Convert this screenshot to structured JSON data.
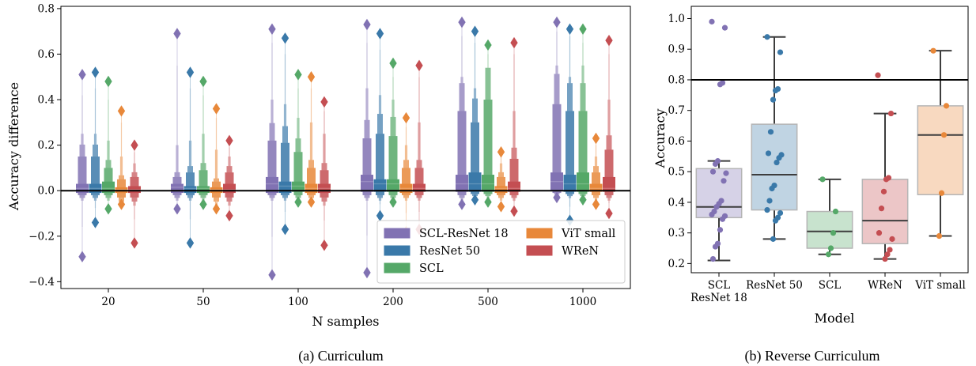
{
  "chart_data": [
    {
      "type": "boxen",
      "caption": "(a) Curriculum",
      "xlabel": "N samples",
      "ylabel": "Accuracy difference",
      "ylim": [
        -0.43,
        0.81
      ],
      "yticks": [
        -0.4,
        -0.2,
        0.0,
        0.2,
        0.4,
        0.6,
        0.8
      ],
      "ytick_labels": [
        "−0.4",
        "−0.2",
        "0.0",
        "0.2",
        "0.4",
        "0.6",
        "0.8"
      ],
      "categories": [
        "20",
        "50",
        "100",
        "200",
        "500",
        "1000"
      ],
      "reference_line_y": 0.0,
      "legend_position": "lower-right",
      "series": [
        {
          "name": "SCL-ResNet 18",
          "color": "#8172b3",
          "median": [
            0.01,
            0.015,
            0.03,
            0.04,
            0.03,
            0.04
          ],
          "q1": [
            -0.01,
            -0.01,
            -0.01,
            -0.005,
            -0.005,
            0.0
          ],
          "q3": [
            0.03,
            0.03,
            0.06,
            0.07,
            0.07,
            0.08
          ],
          "outer_high": [
            0.15,
            0.06,
            0.22,
            0.23,
            0.35,
            0.38
          ],
          "outer_low": [
            -0.02,
            -0.02,
            -0.02,
            -0.02,
            -0.02,
            -0.01
          ],
          "p95": [
            0.25,
            0.2,
            0.4,
            0.45,
            0.5,
            0.55
          ],
          "whisker": [
            0.42,
            0.55,
            0.65,
            0.65,
            0.68,
            0.7
          ],
          "max": [
            0.51,
            0.69,
            0.71,
            0.73,
            0.74,
            0.74
          ],
          "min": [
            -0.29,
            -0.08,
            -0.37,
            -0.36,
            -0.06,
            -0.03
          ]
        },
        {
          "name": "ResNet 50",
          "color": "#3a79a9",
          "median": [
            0.01,
            0.01,
            0.02,
            0.03,
            0.03,
            0.03
          ],
          "q1": [
            -0.01,
            -0.01,
            -0.01,
            -0.005,
            -0.005,
            -0.005
          ],
          "q3": [
            0.03,
            0.02,
            0.04,
            0.05,
            0.08,
            0.07
          ],
          "outer_high": [
            0.15,
            0.08,
            0.21,
            0.25,
            0.3,
            0.35
          ],
          "outer_low": [
            -0.02,
            -0.02,
            -0.02,
            -0.02,
            -0.015,
            -0.015
          ],
          "p95": [
            0.25,
            0.22,
            0.38,
            0.42,
            0.45,
            0.5
          ],
          "whisker": [
            0.45,
            0.45,
            0.6,
            0.62,
            0.65,
            0.68
          ],
          "max": [
            0.52,
            0.52,
            0.67,
            0.69,
            0.7,
            0.71
          ],
          "min": [
            -0.14,
            -0.23,
            -0.17,
            -0.11,
            -0.04,
            -0.13
          ]
        },
        {
          "name": "SCL",
          "color": "#55a868",
          "median": [
            0.01,
            0.01,
            0.02,
            0.03,
            0.03,
            0.03
          ],
          "q1": [
            -0.01,
            -0.01,
            -0.005,
            -0.005,
            -0.005,
            -0.005
          ],
          "q3": [
            0.04,
            0.02,
            0.04,
            0.05,
            0.07,
            0.08
          ],
          "outer_high": [
            0.1,
            0.09,
            0.17,
            0.24,
            0.4,
            0.35
          ],
          "outer_low": [
            -0.02,
            -0.02,
            -0.02,
            -0.02,
            -0.015,
            -0.015
          ],
          "p95": [
            0.22,
            0.25,
            0.32,
            0.4,
            0.5,
            0.55
          ],
          "whisker": [
            0.4,
            0.42,
            0.45,
            0.5,
            0.6,
            0.65
          ],
          "max": [
            0.48,
            0.48,
            0.51,
            0.56,
            0.64,
            0.71
          ],
          "min": [
            -0.08,
            -0.06,
            -0.05,
            -0.05,
            -0.05,
            -0.04
          ]
        },
        {
          "name": "ViT small",
          "color": "#e8883a",
          "median": [
            0.005,
            0.005,
            0.01,
            0.01,
            0.01,
            0.01
          ],
          "q1": [
            -0.01,
            -0.01,
            -0.01,
            -0.01,
            -0.01,
            -0.005
          ],
          "q3": [
            0.015,
            0.015,
            0.03,
            0.03,
            0.02,
            0.03
          ],
          "outer_high": [
            0.05,
            0.04,
            0.1,
            0.1,
            0.06,
            0.08
          ],
          "outer_low": [
            -0.03,
            -0.03,
            -0.02,
            -0.02,
            -0.02,
            -0.02
          ],
          "p95": [
            0.15,
            0.18,
            0.3,
            0.2,
            0.12,
            0.15
          ],
          "whisker": [
            0.3,
            0.32,
            0.45,
            0.28,
            0.15,
            0.2
          ],
          "max": [
            0.35,
            0.36,
            0.5,
            0.32,
            0.17,
            0.23
          ],
          "min": [
            -0.06,
            -0.08,
            -0.05,
            -0.18,
            -0.07,
            -0.06
          ]
        },
        {
          "name": "WReN",
          "color": "#c44e52",
          "median": [
            0.005,
            0.005,
            0.01,
            0.01,
            0.01,
            0.01
          ],
          "q1": [
            -0.01,
            -0.01,
            -0.01,
            -0.005,
            -0.005,
            -0.005
          ],
          "q3": [
            0.02,
            0.03,
            0.03,
            0.03,
            0.04,
            0.06
          ],
          "outer_high": [
            0.06,
            0.08,
            0.09,
            0.1,
            0.14,
            0.18
          ],
          "outer_low": [
            -0.03,
            -0.03,
            -0.03,
            -0.02,
            -0.02,
            -0.02
          ],
          "p95": [
            0.12,
            0.15,
            0.25,
            0.3,
            0.35,
            0.4
          ],
          "whisker": [
            0.17,
            0.19,
            0.35,
            0.5,
            0.6,
            0.6
          ],
          "max": [
            0.2,
            0.22,
            0.39,
            0.55,
            0.65,
            0.66
          ],
          "min": [
            -0.23,
            -0.11,
            -0.24,
            -0.17,
            -0.09,
            -0.1
          ]
        }
      ]
    },
    {
      "type": "box+strip",
      "caption": "(b) Reverse Curriculum",
      "xlabel": "Model",
      "ylabel": "Accuracy",
      "ylim": [
        0.17,
        1.04
      ],
      "yticks": [
        0.2,
        0.3,
        0.4,
        0.5,
        0.6,
        0.7,
        0.8,
        0.9,
        1.0
      ],
      "ytick_labels": [
        "0.2",
        "0.3",
        "0.4",
        "0.5",
        "0.6",
        "0.7",
        "0.8",
        "0.9",
        "1.0"
      ],
      "reference_line_y": 0.8,
      "categories": [
        "SCL\nResNet 18",
        "ResNet 50",
        "SCL",
        "WReN",
        "ViT small"
      ],
      "series": [
        {
          "name": "SCL\nResNet 18",
          "color": "#8172b3",
          "q1": 0.35,
          "median": 0.385,
          "q3": 0.51,
          "whisker_low": 0.21,
          "whisker_high": 0.535,
          "points": [
            0.99,
            0.97,
            0.79,
            0.785,
            0.535,
            0.525,
            0.5,
            0.495,
            0.47,
            0.405,
            0.395,
            0.385,
            0.37,
            0.36,
            0.355,
            0.345,
            0.31,
            0.265,
            0.255,
            0.215
          ]
        },
        {
          "name": "ResNet 50",
          "color": "#3a79a9",
          "q1": 0.375,
          "median": 0.49,
          "q3": 0.655,
          "whisker_low": 0.28,
          "whisker_high": 0.94,
          "points": [
            0.94,
            0.89,
            0.77,
            0.765,
            0.735,
            0.63,
            0.56,
            0.555,
            0.545,
            0.53,
            0.455,
            0.445,
            0.405,
            0.375,
            0.365,
            0.35,
            0.34,
            0.28
          ]
        },
        {
          "name": "SCL",
          "color": "#55a868",
          "q1": 0.25,
          "median": 0.305,
          "q3": 0.37,
          "whisker_low": 0.23,
          "whisker_high": 0.475,
          "points": [
            0.475,
            0.37,
            0.3,
            0.25,
            0.23
          ]
        },
        {
          "name": "WReN",
          "color": "#c44e52",
          "q1": 0.265,
          "median": 0.34,
          "q3": 0.475,
          "whisker_low": 0.215,
          "whisker_high": 0.69,
          "points": [
            0.815,
            0.69,
            0.48,
            0.475,
            0.435,
            0.38,
            0.3,
            0.28,
            0.245,
            0.23,
            0.215
          ]
        },
        {
          "name": "ViT small",
          "color": "#e8883a",
          "q1": 0.425,
          "median": 0.62,
          "q3": 0.715,
          "whisker_low": 0.29,
          "whisker_high": 0.895,
          "points": [
            0.895,
            0.715,
            0.62,
            0.43,
            0.29
          ]
        }
      ]
    }
  ]
}
